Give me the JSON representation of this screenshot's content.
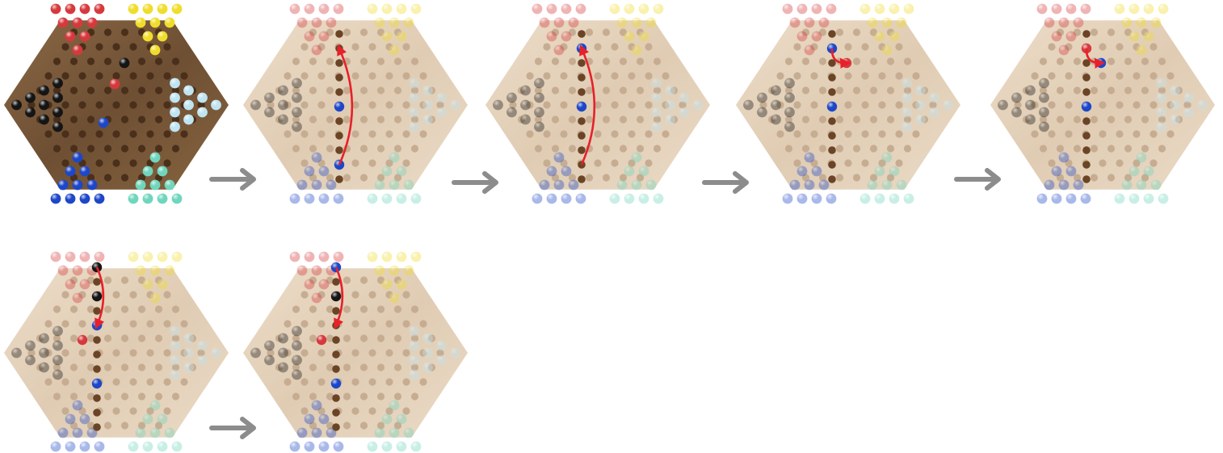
{
  "colors": {
    "wood_dark": "#7a5a3c",
    "wood_light": "#e6d5c0",
    "hole_dark": "#4a2f1b",
    "hole_light": "#c6ad92",
    "arrow": "#8c8c8c",
    "move_arc": "#e8202a",
    "red": "#d6393d",
    "yellow": "#f0dd2a",
    "black": "#151515",
    "light_blue": "#bfe4f2",
    "blue": "#1d47c8",
    "mint": "#6fd6bd"
  },
  "frames": [
    {
      "index": 0,
      "faded": false,
      "move_arc": null,
      "active": []
    },
    {
      "index": 1,
      "faded": true,
      "move_arc": [
        [
          0,
          -4
        ],
        [
          0,
          4
        ]
      ],
      "active": [
        [
          0,
          4
        ],
        [
          0,
          0
        ]
      ]
    },
    {
      "index": 2,
      "faded": true,
      "move_arc": [
        [
          0,
          -4
        ],
        [
          0,
          4
        ]
      ],
      "active": [
        [
          0,
          -4
        ],
        [
          0,
          0
        ]
      ]
    },
    {
      "index": 3,
      "faded": true,
      "move_arc": [
        [
          1,
          -3
        ],
        [
          0,
          -4
        ]
      ],
      "active": [
        [
          0,
          -4
        ],
        [
          0,
          0
        ],
        [
          1,
          -3
        ]
      ]
    },
    {
      "index": 4,
      "faded": true,
      "move_arc": [
        [
          1,
          -3
        ],
        [
          0,
          -4
        ]
      ],
      "active": [
        [
          0,
          -4
        ],
        [
          1,
          -3
        ],
        [
          0,
          0
        ]
      ]
    },
    {
      "index": 5,
      "faded": true,
      "move_arc": [
        [
          0,
          -2
        ],
        [
          0,
          -6
        ]
      ],
      "active": [
        [
          0,
          -2
        ],
        [
          0,
          2
        ],
        [
          -1,
          -1
        ],
        [
          0,
          -6
        ],
        [
          0,
          -4
        ]
      ]
    },
    {
      "index": 6,
      "faded": true,
      "move_arc": [
        [
          0,
          -2
        ],
        [
          0,
          -6
        ]
      ],
      "active": [
        [
          0,
          -6
        ],
        [
          0,
          2
        ],
        [
          -1,
          -1
        ],
        [
          0,
          -4
        ]
      ]
    }
  ],
  "frame_piece_colors": [
    [],
    [
      "blue",
      "blue"
    ],
    [
      "blue",
      "blue"
    ],
    [
      "blue",
      "blue",
      "red"
    ],
    [
      "red",
      "blue",
      "blue"
    ],
    [
      "blue",
      "blue",
      "red",
      "black",
      "black"
    ],
    [
      "blue",
      "blue",
      "red",
      "black"
    ]
  ],
  "arrows": [
    {
      "name": "transition-arrow-1"
    },
    {
      "name": "transition-arrow-2"
    },
    {
      "name": "transition-arrow-3"
    },
    {
      "name": "transition-arrow-4"
    },
    {
      "name": "transition-arrow-5"
    }
  ]
}
